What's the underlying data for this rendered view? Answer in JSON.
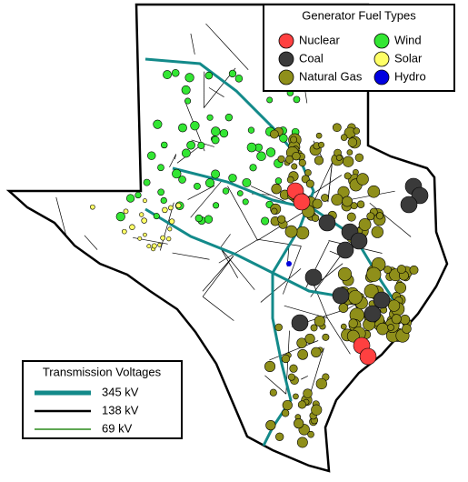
{
  "fuel_legend": {
    "title": "Generator Fuel Types",
    "items": [
      {
        "label": "Nuclear",
        "color": "#ff4040"
      },
      {
        "label": "Coal",
        "color": "#3a3a3a"
      },
      {
        "label": "Natural Gas",
        "color": "#8f8f1a"
      },
      {
        "label": "Wind",
        "color": "#33e633"
      },
      {
        "label": "Solar",
        "color": "#ffff66"
      },
      {
        "label": "Hydro",
        "color": "#0000e0"
      }
    ]
  },
  "voltage_legend": {
    "title": "Transmission Voltages",
    "items": [
      {
        "label": "345 kV",
        "color": "#138a8a"
      },
      {
        "label": "138 kV",
        "color": "#000000"
      },
      {
        "label": "69 kV",
        "color": "#2a8a1a"
      }
    ]
  }
}
